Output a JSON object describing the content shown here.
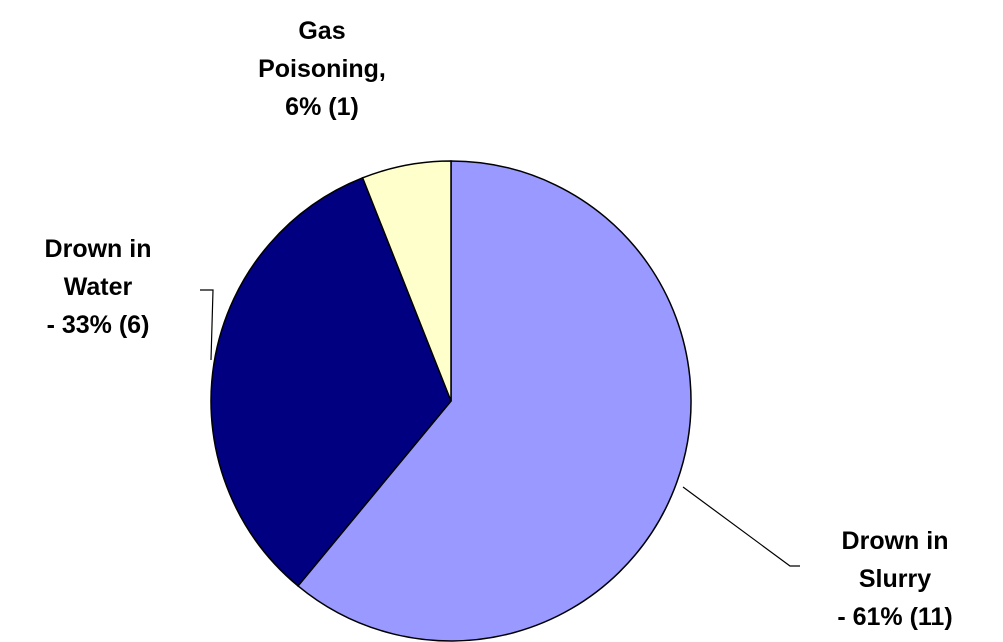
{
  "chart_data": {
    "type": "pie",
    "categories": [
      "Drown in Slurry",
      "Drown in Water",
      "Gas Poisoning,"
    ],
    "values": [
      61,
      33,
      6
    ],
    "value_labels": [
      "- 61% (11)",
      "- 33% (6)",
      "6% (1)"
    ],
    "colors": [
      "#9999ff",
      "#000080",
      "#ffffcc"
    ]
  }
}
